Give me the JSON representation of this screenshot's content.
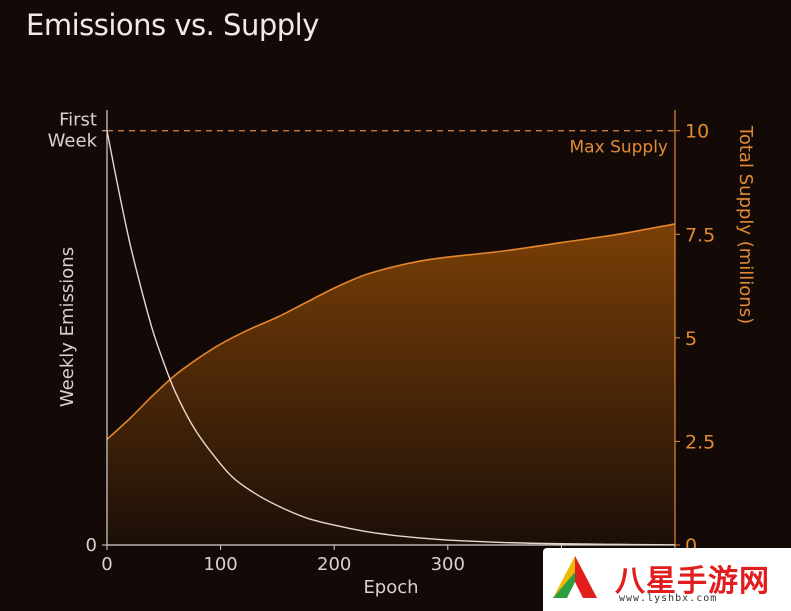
{
  "chart_data": {
    "type": "area",
    "title": "Emissions vs. Supply",
    "xlabel": "Epoch",
    "ylabel_left": "Weekly Emissions",
    "ylabel_right": "Total Supply (millions)",
    "x_ticks": [
      0,
      100,
      200,
      300,
      400,
      500
    ],
    "x_tick_labels": [
      "0",
      "100",
      "200",
      "300",
      "",
      ""
    ],
    "xlim": [
      0,
      500
    ],
    "left_axis": {
      "ticks": [
        {
          "value": 0,
          "label": "0"
        },
        {
          "value": 1,
          "label": "First Week"
        }
      ],
      "ylim": [
        0,
        1.05
      ]
    },
    "right_axis": {
      "ticks": [
        0,
        2.5,
        5,
        7.5,
        10
      ],
      "tick_labels": [
        "0",
        "2.5",
        "5",
        "7.5",
        "10"
      ],
      "ylim": [
        0,
        10.5
      ]
    },
    "max_supply": {
      "label": "Max Supply",
      "value": 10
    },
    "series": [
      {
        "name": "Weekly Emissions",
        "axis": "left",
        "style": "line",
        "x": [
          0,
          10,
          20,
          30,
          40,
          50,
          60,
          75,
          90,
          110,
          130,
          150,
          175,
          200,
          225,
          250,
          275,
          300,
          350,
          400,
          450,
          500
        ],
        "values": [
          1.0,
          0.86,
          0.73,
          0.62,
          0.52,
          0.44,
          0.37,
          0.29,
          0.23,
          0.165,
          0.125,
          0.095,
          0.066,
          0.048,
          0.034,
          0.024,
          0.017,
          0.012,
          0.006,
          0.003,
          0.0015,
          0.0005
        ]
      },
      {
        "name": "Total Supply",
        "axis": "right",
        "style": "area",
        "x": [
          0,
          20,
          40,
          60,
          80,
          100,
          125,
          150,
          175,
          200,
          225,
          250,
          275,
          300,
          350,
          400,
          450,
          500
        ],
        "values": [
          2.55,
          3.05,
          3.6,
          4.1,
          4.5,
          4.85,
          5.2,
          5.5,
          5.85,
          6.2,
          6.5,
          6.7,
          6.85,
          6.95,
          7.1,
          7.3,
          7.5,
          7.75
        ]
      }
    ],
    "grid": false,
    "colors": {
      "background": "#130a08",
      "emissions_line": "#e8d8cc",
      "supply_line": "#e3862d",
      "supply_fill_top": "#7a3f07",
      "supply_fill_bottom": "#1c0f08",
      "left_axis": "#d9d2cc",
      "right_axis": "#e08a34",
      "max_supply_dash": "#d98645"
    }
  },
  "watermark": {
    "text": "八星手游网",
    "url": "www.lyshbx.com"
  }
}
